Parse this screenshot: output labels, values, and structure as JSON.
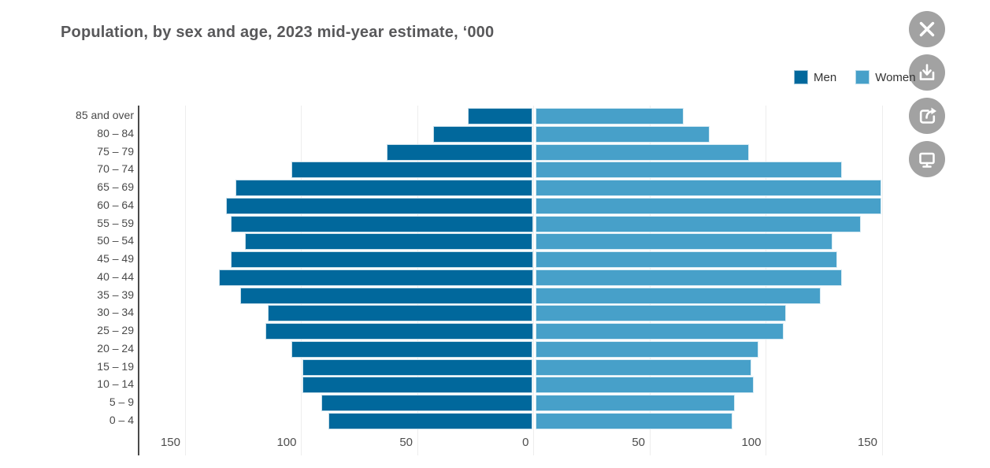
{
  "title": "Population, by sex and age, 2023 mid-year estimate, ‘000",
  "legend": {
    "men_label": "Men",
    "women_label": "Women"
  },
  "toolbar": {
    "icons": [
      "close-icon",
      "download-icon",
      "share-icon",
      "display-icon"
    ]
  },
  "colors": {
    "men": "#01689C",
    "women": "#47A0C9",
    "button_gray": "#A2A2A2",
    "grid": "#EDEDED",
    "axis_line": "#4A4A4A",
    "title_text": "#58585A",
    "axis_text": "#4D4D4D",
    "legend_text": "#333333"
  },
  "chart_data": {
    "type": "bar",
    "variant": "population-pyramid",
    "title": "Population, by sex and age, 2023 mid-year estimate, ‘000",
    "xlabel": "",
    "ylabel": "",
    "unit": "'000 persons",
    "legend_position": "top-right",
    "grid": true,
    "xlim": [
      -170,
      170
    ],
    "x_tick_values": [
      -150,
      -100,
      -50,
      0,
      50,
      100,
      150
    ],
    "x_tick_labels": [
      "150",
      "100",
      "50",
      "0",
      "50",
      "100",
      "150"
    ],
    "categories": [
      "85 and over",
      "80 – 84",
      "75 – 79",
      "70 – 74",
      "65 – 69",
      "60 – 64",
      "55 – 59",
      "50 – 54",
      "45 – 49",
      "40 – 44",
      "35 – 39",
      "30 – 34",
      "25 – 29",
      "20 – 24",
      "15 – 19",
      "10 – 14",
      "5 – 9",
      "0 – 4"
    ],
    "series": [
      {
        "name": "Men",
        "color": "#01689C",
        "direction": "left",
        "values": [
          28,
          43,
          63,
          104,
          128,
          132,
          130,
          124,
          130,
          135,
          126,
          114,
          115,
          104,
          99,
          99,
          91,
          88
        ]
      },
      {
        "name": "Women",
        "color": "#47A0C9",
        "direction": "right",
        "values": [
          64,
          75,
          92,
          132,
          149,
          149,
          140,
          128,
          130,
          132,
          123,
          108,
          107,
          96,
          93,
          94,
          86,
          85
        ]
      }
    ]
  }
}
